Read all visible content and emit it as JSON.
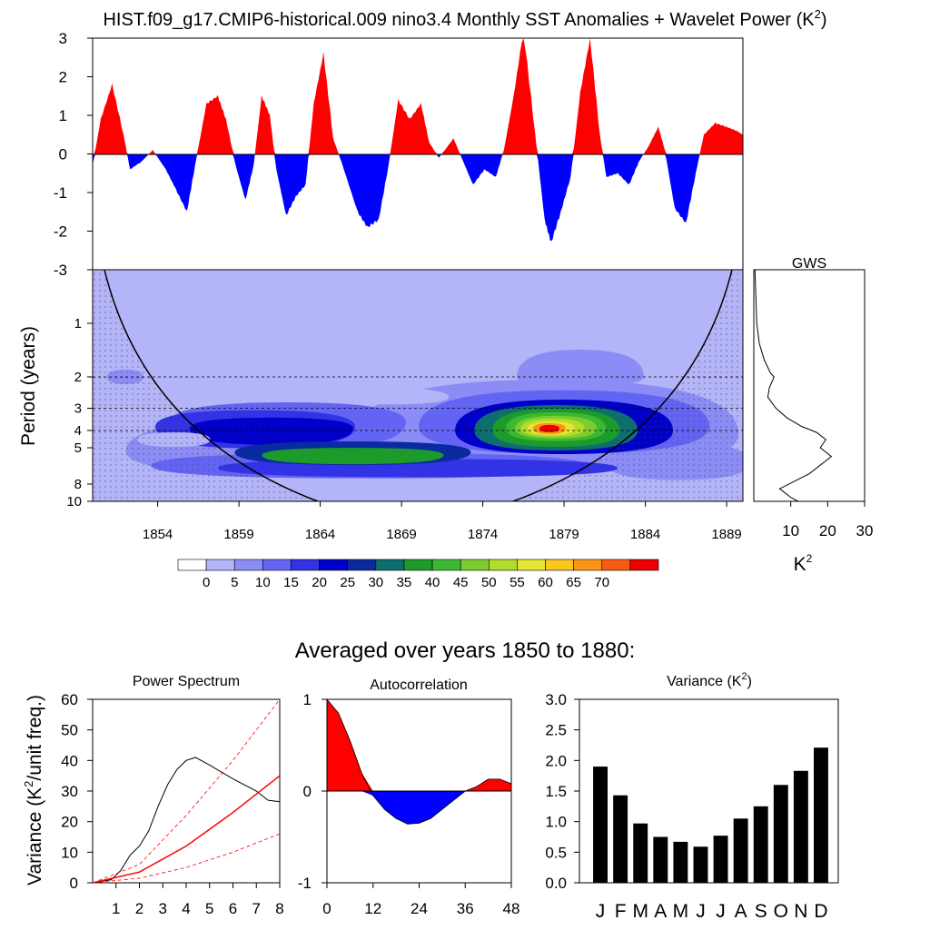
{
  "title": "HIST.f09_g17.CMIP6-historical.009 nino3.4 Monthly SST Anomalies + Wavelet Power (K",
  "title_sup": "2",
  "title_close": ")",
  "subtitle": "Averaged over years 1850 to 1880:",
  "colors": {
    "positive": "#ff0000",
    "negative": "#0000ff",
    "bars": "#000000"
  },
  "chart_data": [
    {
      "id": "anomalies",
      "type": "area",
      "ylim": [
        -3,
        3
      ],
      "yticks": [
        "3",
        "2",
        "1",
        "0",
        "-1",
        "-2",
        "-3"
      ],
      "xlim": [
        1850,
        1890
      ],
      "points": [
        [
          1850,
          -0.3
        ],
        [
          1850.5,
          0.9
        ],
        [
          1851.2,
          1.8
        ],
        [
          1851.9,
          0.5
        ],
        [
          1852.3,
          -0.4
        ],
        [
          1853,
          -0.2
        ],
        [
          1853.7,
          0.1
        ],
        [
          1854.5,
          -0.4
        ],
        [
          1855.1,
          -0.9
        ],
        [
          1855.8,
          -1.5
        ],
        [
          1856.3,
          -0.3
        ],
        [
          1857,
          1.3
        ],
        [
          1857.7,
          1.5
        ],
        [
          1858.2,
          0.9
        ],
        [
          1858.8,
          -0.3
        ],
        [
          1859.4,
          -1.2
        ],
        [
          1859.9,
          -0.3
        ],
        [
          1860.4,
          1.5
        ],
        [
          1860.9,
          1.0
        ],
        [
          1861.3,
          -0.4
        ],
        [
          1861.9,
          -1.6
        ],
        [
          1862.5,
          -1.1
        ],
        [
          1863.1,
          -0.8
        ],
        [
          1863.6,
          1.3
        ],
        [
          1864.2,
          2.6
        ],
        [
          1864.8,
          0.4
        ],
        [
          1865.3,
          -0.2
        ],
        [
          1866.3,
          -1.5
        ],
        [
          1866.9,
          -1.9
        ],
        [
          1867.6,
          -1.7
        ],
        [
          1868.2,
          -0.3
        ],
        [
          1868.8,
          1.4
        ],
        [
          1869.5,
          0.9
        ],
        [
          1870.2,
          1.3
        ],
        [
          1870.7,
          0.3
        ],
        [
          1871.3,
          -0.1
        ],
        [
          1872.2,
          0.4
        ],
        [
          1872.8,
          -0.2
        ],
        [
          1873.4,
          -0.8
        ],
        [
          1874.1,
          -0.4
        ],
        [
          1874.8,
          -0.6
        ],
        [
          1875.3,
          0.1
        ],
        [
          1875.9,
          1.5
        ],
        [
          1876.5,
          3.2
        ],
        [
          1877.2,
          0.6
        ],
        [
          1877.8,
          -1.7
        ],
        [
          1878.2,
          -2.3
        ],
        [
          1878.8,
          -1.5
        ],
        [
          1879.4,
          -0.6
        ],
        [
          1880,
          1.6
        ],
        [
          1880.6,
          3.0
        ],
        [
          1881.2,
          0.5
        ],
        [
          1881.6,
          -0.6
        ],
        [
          1882.3,
          -0.5
        ],
        [
          1883,
          -0.8
        ],
        [
          1883.6,
          -0.2
        ],
        [
          1884.2,
          0.2
        ],
        [
          1884.8,
          0.7
        ],
        [
          1885.2,
          0.1
        ],
        [
          1885.8,
          -1.4
        ],
        [
          1886.5,
          -1.8
        ],
        [
          1887.1,
          -0.5
        ],
        [
          1887.6,
          0.5
        ],
        [
          1888.3,
          0.8
        ],
        [
          1889,
          0.7
        ],
        [
          1889.6,
          0.6
        ],
        [
          1890,
          0.5
        ]
      ]
    },
    {
      "id": "wavelet",
      "type": "heatmap",
      "ylabel": "Period (years)",
      "yticks": [
        "1",
        "2",
        "3",
        "4",
        "5",
        "8",
        "10"
      ],
      "xticks": [
        "1854",
        "1859",
        "1864",
        "1869",
        "1874",
        "1879",
        "1884",
        "1889"
      ],
      "xlim": [
        1850,
        1890
      ],
      "dashed_periods": [
        2,
        3,
        4
      ],
      "levels": [
        "0",
        "5",
        "10",
        "15",
        "20",
        "25",
        "30",
        "35",
        "40",
        "45",
        "50",
        "55",
        "60",
        "65",
        "70"
      ],
      "level_colors": [
        "#ffffff",
        "#b4b4f8",
        "#8c8cf6",
        "#6464f4",
        "#3232e6",
        "#0000c8",
        "#0a2aa0",
        "#0e6e6e",
        "#1d9b2a",
        "#3cb832",
        "#7ccc30",
        "#b0dc2a",
        "#e6e632",
        "#f8c81e",
        "#fa9614",
        "#f85a14",
        "#f00000"
      ],
      "hotspot": {
        "year": 1878,
        "period": 4,
        "power": 70
      }
    },
    {
      "id": "gws",
      "type": "line",
      "title": "GWS",
      "xlabel": "K",
      "xlabel_sup": "2",
      "xticks": [
        "10",
        "20",
        "30"
      ],
      "xlim": [
        0,
        30
      ],
      "points": [
        [
          0.3,
          0.5
        ],
        [
          0.8,
          1
        ],
        [
          1.5,
          1.3
        ],
        [
          2.8,
          1.6
        ],
        [
          4.5,
          1.9
        ],
        [
          5.5,
          2.0
        ],
        [
          4.2,
          2.3
        ],
        [
          3.8,
          2.6
        ],
        [
          6,
          3.0
        ],
        [
          9,
          3.4
        ],
        [
          13,
          3.8
        ],
        [
          17,
          4.1
        ],
        [
          19.5,
          4.5
        ],
        [
          18,
          5
        ],
        [
          21,
          5.6
        ],
        [
          15,
          7
        ],
        [
          7,
          8.5
        ],
        [
          10,
          9.5
        ],
        [
          12,
          10
        ]
      ]
    },
    {
      "id": "power-spectrum",
      "type": "line",
      "title": "Power Spectrum",
      "ylabel": "Variance (K",
      "ylabel_sup": "2",
      "ylabel_end": "/unit freq.)",
      "xlim": [
        0,
        8
      ],
      "ylim": [
        0,
        60
      ],
      "xticks": [
        "1",
        "2",
        "3",
        "4",
        "5",
        "6",
        "7",
        "8"
      ],
      "yticks": [
        "60",
        "50",
        "40",
        "30",
        "20",
        "10",
        "0"
      ],
      "series": [
        {
          "values": [
            [
              0,
              0
            ],
            [
              0.8,
              1
            ],
            [
              1.2,
              4
            ],
            [
              1.6,
              9
            ],
            [
              2,
              12
            ],
            [
              2.4,
              17
            ],
            [
              2.8,
              25
            ],
            [
              3.2,
              32
            ],
            [
              3.6,
              37
            ],
            [
              4,
              40
            ],
            [
              4.4,
              41
            ],
            [
              5,
              38.5
            ],
            [
              6,
              34
            ],
            [
              7,
              30
            ],
            [
              7.5,
              27
            ],
            [
              8,
              26.5
            ]
          ]
        },
        {
          "values": [
            [
              0,
              0
            ],
            [
              2,
              3.5
            ],
            [
              4,
              12
            ],
            [
              6,
              23
            ],
            [
              8,
              35
            ]
          ]
        },
        {
          "values": [
            [
              0,
              0
            ],
            [
              2,
              6
            ],
            [
              4,
              22
            ],
            [
              6,
              40
            ],
            [
              8,
              60
            ]
          ]
        },
        {
          "values": [
            [
              0,
              0
            ],
            [
              2,
              1.5
            ],
            [
              4,
              5
            ],
            [
              6,
              10
            ],
            [
              8,
              16
            ]
          ]
        }
      ]
    },
    {
      "id": "autocorrelation",
      "type": "area",
      "title": "Autocorrelation",
      "xlim": [
        0,
        48
      ],
      "ylim": [
        -1,
        1
      ],
      "xticks": [
        "0",
        "12",
        "24",
        "36",
        "48"
      ],
      "yticks": [
        "1",
        "0",
        "-1"
      ],
      "points": [
        [
          0,
          1
        ],
        [
          3,
          0.85
        ],
        [
          6,
          0.55
        ],
        [
          9,
          0.2
        ],
        [
          12,
          -0.05
        ],
        [
          15,
          -0.2
        ],
        [
          18,
          -0.3
        ],
        [
          21,
          -0.36
        ],
        [
          24,
          -0.35
        ],
        [
          27,
          -0.3
        ],
        [
          30,
          -0.2
        ],
        [
          33,
          -0.1
        ],
        [
          36,
          0.0
        ],
        [
          39,
          0.05
        ],
        [
          42,
          0.13
        ],
        [
          45,
          0.13
        ],
        [
          48,
          0.08
        ]
      ]
    },
    {
      "id": "variance",
      "type": "bar",
      "title": "Variance (K",
      "title_sup": "2",
      "title_close": ")",
      "ylim": [
        0,
        3
      ],
      "yticks": [
        "3.0",
        "2.5",
        "2.0",
        "1.5",
        "1.0",
        "0.5",
        "0.0"
      ],
      "categories": [
        "J",
        "F",
        "M",
        "A",
        "M",
        "J",
        "J",
        "A",
        "S",
        "O",
        "N",
        "D"
      ],
      "values": [
        1.9,
        1.43,
        0.97,
        0.75,
        0.67,
        0.59,
        0.77,
        1.05,
        1.25,
        1.6,
        1.83,
        2.21
      ]
    }
  ]
}
